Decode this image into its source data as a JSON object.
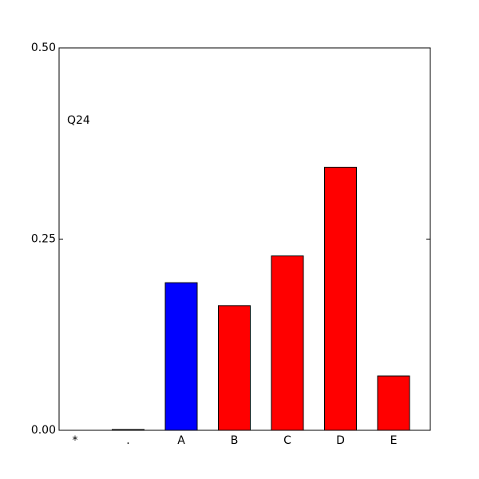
{
  "chart_data": {
    "type": "bar",
    "annotation": "Q24",
    "categories": [
      "*",
      ".",
      "A",
      "B",
      "C",
      "D",
      "E"
    ],
    "values": [
      0,
      0.001,
      0.193,
      0.163,
      0.228,
      0.344,
      0.071
    ],
    "colors": [
      "#ff0000",
      "#ff0000",
      "#0000ff",
      "#ff0000",
      "#ff0000",
      "#ff0000",
      "#ff0000"
    ],
    "ylim": [
      0,
      0.5
    ],
    "yticks": [
      {
        "value": 0,
        "label": "0.00"
      },
      0.25,
      {
        "value": 0.5,
        "label": "0.50"
      }
    ],
    "grid": false
  }
}
